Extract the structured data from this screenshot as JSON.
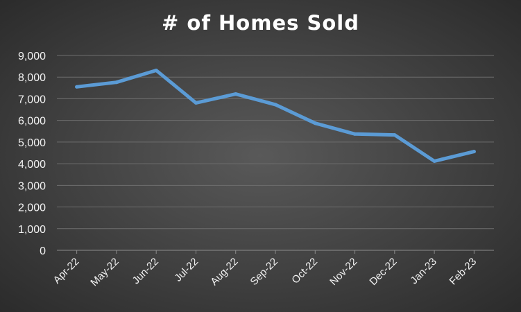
{
  "chart_data": {
    "type": "line",
    "title": "# of Homes Sold",
    "xlabel": "",
    "ylabel": "",
    "categories": [
      "Apr-22",
      "May-22",
      "Jun-22",
      "Jul-22",
      "Aug-22",
      "Sep-22",
      "Oct-22",
      "Nov-22",
      "Dec-22",
      "Jan-23",
      "Feb-23"
    ],
    "series": [
      {
        "values": [
          7550,
          7760,
          8310,
          6810,
          7220,
          6730,
          5870,
          5370,
          5330,
          4120,
          4560
        ],
        "color": "#5b9bd5"
      }
    ],
    "ylim": [
      0,
      9000
    ],
    "yticks": [
      0,
      1000,
      2000,
      3000,
      4000,
      5000,
      6000,
      7000,
      8000,
      9000
    ],
    "ytick_labels": [
      "0",
      "1,000",
      "2,000",
      "3,000",
      "4,000",
      "5,000",
      "6,000",
      "7,000",
      "8,000",
      "9,000"
    ],
    "grid": true,
    "legend": "none"
  }
}
